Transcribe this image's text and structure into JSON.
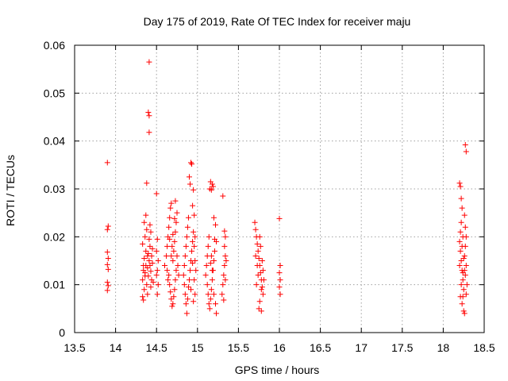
{
  "chart_data": {
    "type": "scatter",
    "title": "Day 175 of 2019, Rate Of TEC Index for receiver maju",
    "xlabel": "GPS time / hours",
    "ylabel": "ROTI / TECUs",
    "xlim": [
      13.5,
      18.5
    ],
    "ylim": [
      0,
      0.06
    ],
    "xticks": [
      13.5,
      14,
      14.5,
      15,
      15.5,
      16,
      16.5,
      17,
      17.5,
      18,
      18.5
    ],
    "xtick_labels": [
      "13.5",
      "14",
      "14.5",
      "15",
      "15.5",
      "16",
      "16.5",
      "17",
      "17.5",
      "18",
      "18.5"
    ],
    "yticks": [
      0,
      0.01,
      0.02,
      0.03,
      0.04,
      0.05,
      0.06
    ],
    "ytick_labels": [
      "0",
      "0.01",
      "0.02",
      "0.03",
      "0.04",
      "0.05",
      "0.06"
    ],
    "grid": true,
    "marker": "+",
    "marker_color": "#ff0000",
    "series": [
      {
        "name": "ROTI",
        "points": [
          [
            13.9,
            0.0355
          ],
          [
            13.91,
            0.0222
          ],
          [
            13.9,
            0.0215
          ],
          [
            13.9,
            0.0168
          ],
          [
            13.91,
            0.0155
          ],
          [
            13.9,
            0.0142
          ],
          [
            13.91,
            0.0132
          ],
          [
            13.9,
            0.0105
          ],
          [
            13.91,
            0.0098
          ],
          [
            13.9,
            0.0088
          ],
          [
            14.33,
            0.0075
          ],
          [
            14.34,
            0.0068
          ],
          [
            14.35,
            0.009
          ],
          [
            14.33,
            0.011
          ],
          [
            14.36,
            0.0125
          ],
          [
            14.34,
            0.014
          ],
          [
            14.35,
            0.0155
          ],
          [
            14.37,
            0.017
          ],
          [
            14.33,
            0.0185
          ],
          [
            14.36,
            0.02
          ],
          [
            14.38,
            0.0215
          ],
          [
            14.35,
            0.023
          ],
          [
            14.37,
            0.0245
          ],
          [
            14.39,
            0.008
          ],
          [
            14.38,
            0.01
          ],
          [
            14.4,
            0.0118
          ],
          [
            14.39,
            0.0135
          ],
          [
            14.41,
            0.015
          ],
          [
            14.4,
            0.0165
          ],
          [
            14.42,
            0.018
          ],
          [
            14.41,
            0.0195
          ],
          [
            14.43,
            0.021
          ],
          [
            14.42,
            0.0225
          ],
          [
            14.44,
            0.011
          ],
          [
            14.43,
            0.0128
          ],
          [
            14.45,
            0.0145
          ],
          [
            14.44,
            0.016
          ],
          [
            14.45,
            0.0175
          ],
          [
            14.43,
            0.0095
          ],
          [
            14.46,
            0.0105
          ],
          [
            14.38,
            0.0312
          ],
          [
            14.41,
            0.0565
          ],
          [
            14.4,
            0.046
          ],
          [
            14.41,
            0.0453
          ],
          [
            14.41,
            0.0418
          ],
          [
            14.37,
            0.014
          ],
          [
            14.36,
            0.0118
          ],
          [
            14.39,
            0.016
          ],
          [
            14.34,
            0.013
          ],
          [
            14.42,
            0.014
          ],
          [
            14.5,
            0.029
          ],
          [
            14.51,
            0.0195
          ],
          [
            14.5,
            0.017
          ],
          [
            14.52,
            0.015
          ],
          [
            14.51,
            0.013
          ],
          [
            14.5,
            0.012
          ],
          [
            14.52,
            0.01
          ],
          [
            14.51,
            0.008
          ],
          [
            14.6,
            0.014
          ],
          [
            14.62,
            0.016
          ],
          [
            14.63,
            0.018
          ],
          [
            14.64,
            0.02
          ],
          [
            14.65,
            0.022
          ],
          [
            14.66,
            0.024
          ],
          [
            14.67,
            0.026
          ],
          [
            14.68,
            0.027
          ],
          [
            14.65,
            0.012
          ],
          [
            14.66,
            0.01
          ],
          [
            14.67,
            0.0085
          ],
          [
            14.68,
            0.007
          ],
          [
            14.69,
            0.0055
          ],
          [
            14.7,
            0.006
          ],
          [
            14.71,
            0.0075
          ],
          [
            14.72,
            0.009
          ],
          [
            14.73,
            0.011
          ],
          [
            14.74,
            0.013
          ],
          [
            14.7,
            0.015
          ],
          [
            14.71,
            0.017
          ],
          [
            14.72,
            0.019
          ],
          [
            14.73,
            0.021
          ],
          [
            14.74,
            0.023
          ],
          [
            14.75,
            0.025
          ],
          [
            14.73,
            0.0275
          ],
          [
            14.76,
            0.014
          ],
          [
            14.75,
            0.016
          ],
          [
            14.77,
            0.012
          ],
          [
            14.68,
            0.016
          ],
          [
            14.69,
            0.018
          ],
          [
            14.63,
            0.013
          ],
          [
            14.64,
            0.011
          ],
          [
            14.7,
            0.0205
          ],
          [
            14.72,
            0.0238
          ],
          [
            14.66,
            0.0195
          ],
          [
            14.83,
            0.012
          ],
          [
            14.84,
            0.014
          ],
          [
            14.85,
            0.016
          ],
          [
            14.86,
            0.018
          ],
          [
            14.87,
            0.02
          ],
          [
            14.88,
            0.022
          ],
          [
            14.89,
            0.024
          ],
          [
            14.85,
            0.008
          ],
          [
            14.86,
            0.006
          ],
          [
            14.87,
            0.004
          ],
          [
            14.88,
            0.007
          ],
          [
            14.89,
            0.0095
          ],
          [
            14.9,
            0.011
          ],
          [
            14.91,
            0.013
          ],
          [
            14.92,
            0.015
          ],
          [
            14.93,
            0.017
          ],
          [
            14.94,
            0.019
          ],
          [
            14.9,
            0.0325
          ],
          [
            14.91,
            0.031
          ],
          [
            14.92,
            0.0355
          ],
          [
            14.93,
            0.0352
          ],
          [
            14.94,
            0.0265
          ],
          [
            14.95,
            0.0298
          ],
          [
            14.96,
            0.0245
          ],
          [
            14.95,
            0.021
          ],
          [
            14.96,
            0.018
          ],
          [
            14.97,
            0.015
          ],
          [
            14.96,
            0.011
          ],
          [
            14.97,
            0.008
          ],
          [
            14.95,
            0.0065
          ],
          [
            14.98,
            0.013
          ],
          [
            14.97,
            0.02
          ],
          [
            14.84,
            0.01
          ],
          [
            14.92,
            0.009
          ],
          [
            14.94,
            0.0145
          ],
          [
            15.1,
            0.012
          ],
          [
            15.11,
            0.014
          ],
          [
            15.12,
            0.016
          ],
          [
            15.13,
            0.018
          ],
          [
            15.14,
            0.02
          ],
          [
            15.12,
            0.01
          ],
          [
            15.13,
            0.008
          ],
          [
            15.14,
            0.006
          ],
          [
            15.15,
            0.005
          ],
          [
            15.16,
            0.007
          ],
          [
            15.17,
            0.009
          ],
          [
            15.18,
            0.011
          ],
          [
            15.19,
            0.013
          ],
          [
            15.2,
            0.015
          ],
          [
            15.21,
            0.017
          ],
          [
            15.15,
            0.03
          ],
          [
            15.16,
            0.0315
          ],
          [
            15.17,
            0.0298
          ],
          [
            15.18,
            0.031
          ],
          [
            15.19,
            0.0305
          ],
          [
            15.2,
            0.024
          ],
          [
            15.22,
            0.0225
          ],
          [
            15.23,
            0.019
          ],
          [
            15.21,
            0.0195
          ],
          [
            15.2,
            0.008
          ],
          [
            15.22,
            0.006
          ],
          [
            15.23,
            0.004
          ],
          [
            15.18,
            0.013
          ],
          [
            15.17,
            0.016
          ],
          [
            15.16,
            0.0145
          ],
          [
            15.3,
            0.008
          ],
          [
            15.31,
            0.01
          ],
          [
            15.32,
            0.012
          ],
          [
            15.33,
            0.014
          ],
          [
            15.34,
            0.016
          ],
          [
            15.33,
            0.018
          ],
          [
            15.34,
            0.02
          ],
          [
            15.33,
            0.0212
          ],
          [
            15.31,
            0.0285
          ],
          [
            15.32,
            0.0068
          ],
          [
            15.34,
            0.011
          ],
          [
            15.35,
            0.015
          ],
          [
            15.7,
            0.023
          ],
          [
            15.71,
            0.0215
          ],
          [
            15.72,
            0.02
          ],
          [
            15.73,
            0.0185
          ],
          [
            15.74,
            0.017
          ],
          [
            15.75,
            0.0155
          ],
          [
            15.76,
            0.014
          ],
          [
            15.77,
            0.0125
          ],
          [
            15.78,
            0.011
          ],
          [
            15.79,
            0.0095
          ],
          [
            15.8,
            0.008
          ],
          [
            15.76,
            0.0065
          ],
          [
            15.75,
            0.005
          ],
          [
            15.78,
            0.0045
          ],
          [
            15.72,
            0.01
          ],
          [
            15.74,
            0.012
          ],
          [
            15.73,
            0.014
          ],
          [
            15.71,
            0.016
          ],
          [
            15.77,
            0.018
          ],
          [
            15.79,
            0.015
          ],
          [
            15.8,
            0.013
          ],
          [
            15.81,
            0.011
          ],
          [
            15.78,
            0.009
          ],
          [
            15.76,
            0.02
          ],
          [
            16.0,
            0.0238
          ],
          [
            16.01,
            0.014
          ],
          [
            16.0,
            0.0125
          ],
          [
            16.01,
            0.011
          ],
          [
            16.0,
            0.0095
          ],
          [
            16.01,
            0.008
          ],
          [
            18.2,
            0.0312
          ],
          [
            18.21,
            0.0305
          ],
          [
            18.22,
            0.028
          ],
          [
            18.23,
            0.026
          ],
          [
            18.22,
            0.023
          ],
          [
            18.21,
            0.021
          ],
          [
            18.2,
            0.019
          ],
          [
            18.21,
            0.017
          ],
          [
            18.22,
            0.015
          ],
          [
            18.23,
            0.013
          ],
          [
            18.24,
            0.011
          ],
          [
            18.25,
            0.009
          ],
          [
            18.24,
            0.0075
          ],
          [
            18.23,
            0.006
          ],
          [
            18.25,
            0.0045
          ],
          [
            18.26,
            0.004
          ],
          [
            18.27,
            0.0392
          ],
          [
            18.28,
            0.0378
          ],
          [
            18.26,
            0.0245
          ],
          [
            18.27,
            0.022
          ],
          [
            18.28,
            0.02
          ],
          [
            18.27,
            0.018
          ],
          [
            18.26,
            0.016
          ],
          [
            18.28,
            0.014
          ],
          [
            18.27,
            0.012
          ],
          [
            18.29,
            0.01
          ],
          [
            18.28,
            0.008
          ],
          [
            18.21,
            0.0075
          ],
          [
            18.22,
            0.01
          ],
          [
            18.24,
            0.0125
          ],
          [
            18.25,
            0.0155
          ],
          [
            18.23,
            0.018
          ],
          [
            18.24,
            0.02
          ],
          [
            18.2,
            0.014
          ],
          [
            18.26,
            0.013
          ]
        ]
      }
    ]
  }
}
